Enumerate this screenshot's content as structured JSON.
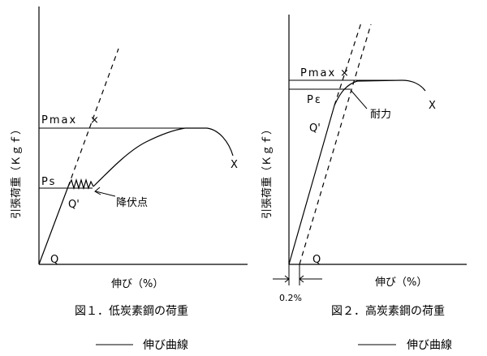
{
  "figure1": {
    "ylabel": "引張荷重（Ｋｇｆ）",
    "xlabel": "伸び（%）",
    "pmax": "Pmax",
    "ps": "Ps",
    "q": "Q",
    "qprime": "Q'",
    "yield_point": "降伏点",
    "fracture": "X",
    "caption": "図１．低炭素鋼の荷重",
    "legend": "伸び曲線"
  },
  "figure2": {
    "ylabel": "引張荷重（Ｋｇｆ）",
    "xlabel": "伸び（%）",
    "pmax": "Pmax",
    "pe": "Pε",
    "q": "Q",
    "qprime": "Q'",
    "proof_stress": "耐力",
    "fracture": "X",
    "offset": "0.2%",
    "caption": "図２．高炭素鋼の荷重",
    "legend": "伸び曲線"
  }
}
